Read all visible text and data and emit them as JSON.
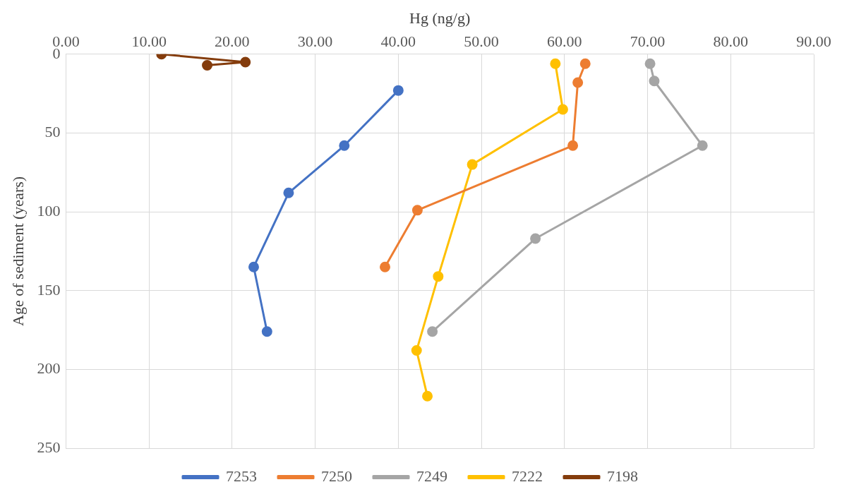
{
  "chart_data": {
    "type": "line",
    "xlabel": "Hg (ng/g)",
    "ylabel": "Age of sediment (years)",
    "xlim": [
      0,
      90
    ],
    "xticks": [
      {
        "value": 0,
        "label": "0.00"
      },
      {
        "value": 10,
        "label": "10.00"
      },
      {
        "value": 20,
        "label": "20.00"
      },
      {
        "value": 30,
        "label": "30.00"
      },
      {
        "value": 40,
        "label": "40.00"
      },
      {
        "value": 50,
        "label": "50.00"
      },
      {
        "value": 60,
        "label": "60.00"
      },
      {
        "value": 70,
        "label": "70.00"
      },
      {
        "value": 80,
        "label": "80.00"
      },
      {
        "value": 90,
        "label": "90.00"
      }
    ],
    "ylim": [
      250,
      0
    ],
    "yticks": [
      0,
      50,
      100,
      150,
      200,
      250
    ],
    "grid": true,
    "legend": "bottom",
    "marker": "circle",
    "line_style": "solid",
    "series": [
      {
        "name": "7253",
        "color": "#4472c4",
        "x": [
          40.0,
          33.5,
          26.8,
          22.6,
          24.2
        ],
        "values": [
          23,
          58,
          88,
          135,
          176
        ]
      },
      {
        "name": "7250",
        "color": "#ed7d31",
        "x": [
          62.5,
          61.6,
          61.0,
          42.3,
          38.4
        ],
        "values": [
          6,
          18,
          58,
          99,
          135
        ]
      },
      {
        "name": "7249",
        "color": "#a5a5a5",
        "x": [
          70.3,
          70.8,
          76.6,
          56.5,
          44.1
        ],
        "values": [
          6,
          17,
          58,
          117,
          176
        ]
      },
      {
        "name": "7222",
        "color": "#ffc000",
        "x": [
          58.9,
          59.8,
          48.9,
          44.8,
          42.2,
          43.5
        ],
        "values": [
          6,
          35,
          70,
          141,
          188,
          217
        ]
      },
      {
        "name": "7198",
        "color": "#843c0c",
        "x": [
          11.5,
          21.6,
          17.0
        ],
        "values": [
          0,
          5,
          7
        ]
      }
    ]
  }
}
